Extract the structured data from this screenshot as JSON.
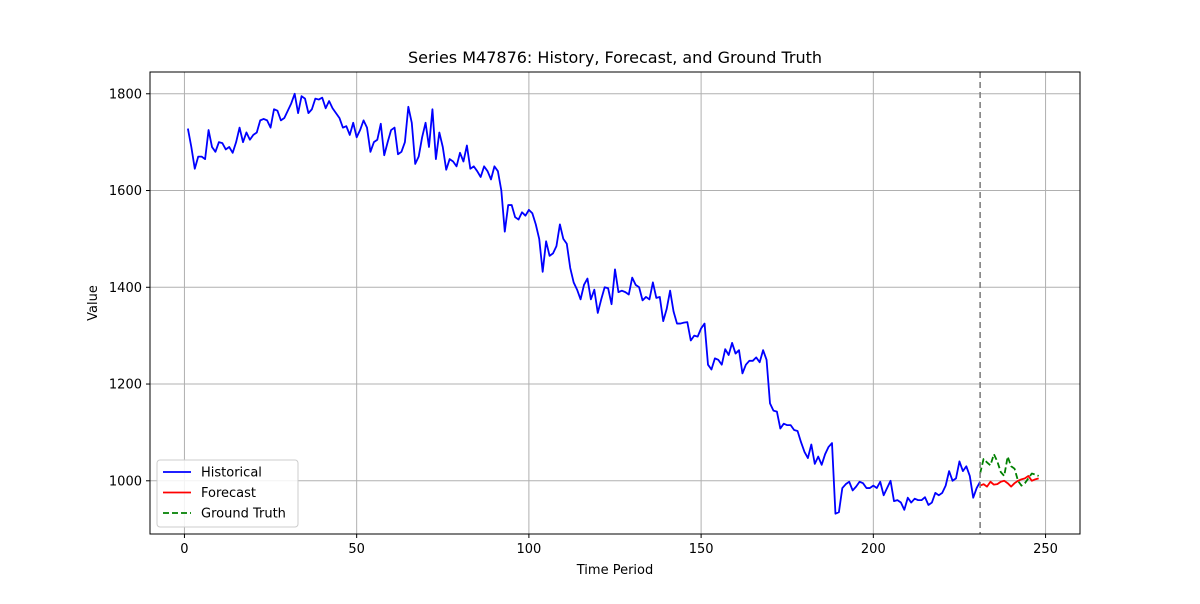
{
  "chart_data": {
    "type": "line",
    "title": "Series M47876: History, Forecast, and Ground Truth",
    "xlabel": "Time Period",
    "ylabel": "Value",
    "xlim": [
      -10,
      260
    ],
    "ylim": [
      890,
      1845
    ],
    "x_ticks": [
      0,
      50,
      100,
      150,
      200,
      250
    ],
    "y_ticks": [
      1000,
      1200,
      1400,
      1600,
      1800
    ],
    "grid": true,
    "legend_position": "lower-left",
    "forecast_start_marker_x": 231,
    "series": [
      {
        "name": "Historical",
        "color": "#0000ff",
        "style": "solid",
        "x_start": 1,
        "values": [
          1728,
          1690,
          1645,
          1670,
          1670,
          1665,
          1725,
          1690,
          1680,
          1700,
          1698,
          1685,
          1690,
          1678,
          1700,
          1730,
          1700,
          1720,
          1705,
          1715,
          1720,
          1745,
          1748,
          1745,
          1730,
          1768,
          1765,
          1745,
          1750,
          1765,
          1780,
          1800,
          1760,
          1795,
          1790,
          1760,
          1768,
          1790,
          1788,
          1792,
          1770,
          1785,
          1770,
          1760,
          1750,
          1730,
          1733,
          1715,
          1740,
          1710,
          1725,
          1745,
          1730,
          1680,
          1700,
          1705,
          1738,
          1673,
          1700,
          1725,
          1730,
          1675,
          1680,
          1700,
          1773,
          1740,
          1655,
          1670,
          1710,
          1740,
          1690,
          1768,
          1665,
          1720,
          1690,
          1643,
          1665,
          1660,
          1650,
          1678,
          1660,
          1693,
          1645,
          1650,
          1640,
          1628,
          1650,
          1640,
          1623,
          1650,
          1640,
          1600,
          1515,
          1570,
          1570,
          1545,
          1540,
          1555,
          1548,
          1560,
          1553,
          1530,
          1500,
          1432,
          1495,
          1465,
          1470,
          1485,
          1530,
          1500,
          1490,
          1440,
          1410,
          1395,
          1375,
          1405,
          1418,
          1375,
          1395,
          1347,
          1375,
          1400,
          1398,
          1365,
          1437,
          1390,
          1393,
          1390,
          1385,
          1420,
          1405,
          1400,
          1373,
          1380,
          1375,
          1410,
          1378,
          1380,
          1330,
          1355,
          1393,
          1350,
          1325,
          1325,
          1327,
          1328,
          1290,
          1300,
          1298,
          1315,
          1325,
          1240,
          1230,
          1253,
          1250,
          1240,
          1272,
          1260,
          1285,
          1263,
          1270,
          1222,
          1240,
          1248,
          1248,
          1255,
          1245,
          1270,
          1250,
          1160,
          1145,
          1143,
          1108,
          1118,
          1115,
          1115,
          1105,
          1103,
          1080,
          1060,
          1047,
          1075,
          1035,
          1050,
          1033,
          1055,
          1070,
          1078,
          932,
          935,
          985,
          993,
          998,
          980,
          988,
          998,
          995,
          985,
          985,
          990,
          985,
          998,
          970,
          985,
          1000,
          958,
          960,
          955,
          940,
          965,
          955,
          963,
          960,
          960,
          966,
          950,
          955,
          975,
          970,
          975,
          990,
          1020,
          1000,
          1005,
          1040,
          1020,
          1030,
          1010,
          965,
          985,
          998
        ]
      },
      {
        "name": "Forecast",
        "color": "#ff0000",
        "style": "solid",
        "x_start": 231,
        "values": [
          990,
          993,
          988,
          998,
          992,
          993,
          998,
          1000,
          995,
          988,
          995,
          1000,
          1003,
          1005,
          1010,
          1000,
          1003,
          1005
        ]
      },
      {
        "name": "Ground Truth",
        "color": "#008000",
        "style": "dashed",
        "x_start": 231,
        "values": [
          1015,
          1045,
          1038,
          1032,
          1055,
          1040,
          1018,
          1010,
          1050,
          1030,
          1025,
          1000,
          990,
          995,
          1005,
          1015,
          1013,
          1010
        ]
      }
    ]
  }
}
